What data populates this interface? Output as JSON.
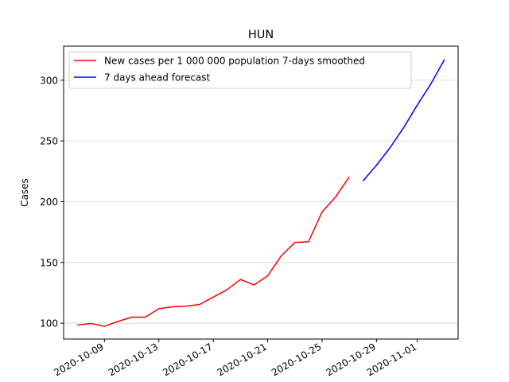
{
  "chart_data": {
    "type": "line",
    "title": "HUN",
    "xlabel": "",
    "ylabel": "Cases",
    "xlim": [
      "2020-10-06",
      "2020-11-04"
    ],
    "ylim": [
      87,
      328
    ],
    "x_ticks": [
      "2020-10-09",
      "2020-10-13",
      "2020-10-17",
      "2020-10-21",
      "2020-10-25",
      "2020-10-29",
      "2020-11-01"
    ],
    "y_ticks": [
      100,
      150,
      200,
      250,
      300
    ],
    "grid": "horizontal",
    "legend_position": "top-left",
    "series": [
      {
        "name": "New cases per 1 000 000 population 7-days smoothed",
        "color": "#ff0000",
        "points": [
          {
            "x": "2020-10-07",
            "y": 98.5
          },
          {
            "x": "2020-10-08",
            "y": 99.8
          },
          {
            "x": "2020-10-09",
            "y": 97.5
          },
          {
            "x": "2020-10-10",
            "y": 101.5
          },
          {
            "x": "2020-10-11",
            "y": 105.0
          },
          {
            "x": "2020-10-12",
            "y": 105.0
          },
          {
            "x": "2020-10-13",
            "y": 112.0
          },
          {
            "x": "2020-10-14",
            "y": 113.5
          },
          {
            "x": "2020-10-15",
            "y": 114.0
          },
          {
            "x": "2020-10-16",
            "y": 115.5
          },
          {
            "x": "2020-10-17",
            "y": 121.5
          },
          {
            "x": "2020-10-18",
            "y": 127.5
          },
          {
            "x": "2020-10-19",
            "y": 136.0
          },
          {
            "x": "2020-10-20",
            "y": 131.5
          },
          {
            "x": "2020-10-21",
            "y": 139.0
          },
          {
            "x": "2020-10-22",
            "y": 155.5
          },
          {
            "x": "2020-10-23",
            "y": 166.5
          },
          {
            "x": "2020-10-24",
            "y": 167.0
          },
          {
            "x": "2020-10-25",
            "y": 191.5
          },
          {
            "x": "2020-10-26",
            "y": 204.0
          },
          {
            "x": "2020-10-27",
            "y": 220.5
          }
        ]
      },
      {
        "name": "7 days ahead forecast",
        "color": "#0000ff",
        "points": [
          {
            "x": "2020-10-28",
            "y": 217.0
          },
          {
            "x": "2020-10-29",
            "y": 230.0
          },
          {
            "x": "2020-10-30",
            "y": 244.5
          },
          {
            "x": "2020-10-31",
            "y": 261.0
          },
          {
            "x": "2020-11-01",
            "y": 279.5
          },
          {
            "x": "2020-11-02",
            "y": 297.0
          },
          {
            "x": "2020-11-03",
            "y": 317.0
          }
        ]
      }
    ]
  }
}
